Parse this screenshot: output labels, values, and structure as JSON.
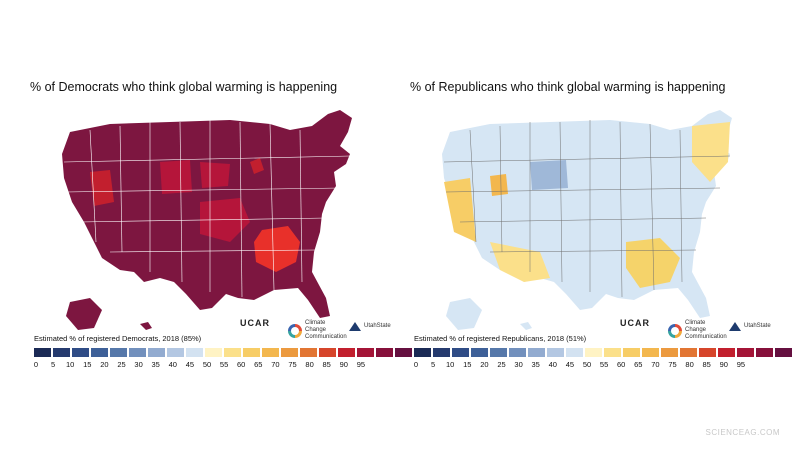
{
  "left_map": {
    "title": "% of Democrats who think global warming is happening",
    "legend_caption": "Estimated % of registered Democrats, 2018 (85%)",
    "base_color": "#7d1640",
    "border_color": "#ffffff",
    "hotspot_color": "#e8302a"
  },
  "right_map": {
    "title": "% of Republicans who think global warming is happening",
    "legend_caption": "Estimated % of registered Republicans, 2018 (51%)",
    "base_color": "#d6e6f4",
    "border_color": "#6f6f6f",
    "hotspot_color": "#f5d36a"
  },
  "legend": {
    "ticks": [
      "0",
      "5",
      "10",
      "15",
      "20",
      "25",
      "30",
      "35",
      "40",
      "45",
      "50",
      "55",
      "60",
      "65",
      "70",
      "75",
      "80",
      "85",
      "90",
      "95"
    ],
    "colors": [
      "#1b2a55",
      "#253a6e",
      "#2f4c86",
      "#3e6098",
      "#5678aa",
      "#7290bd",
      "#92abd0",
      "#b3c7e2",
      "#d3e2f1",
      "#fff3c4",
      "#fbe08a",
      "#f7cd66",
      "#f3b74e",
      "#ec9a3f",
      "#e27533",
      "#d6452b",
      "#c21f2e",
      "#a41437",
      "#86103b",
      "#651040"
    ]
  },
  "logos": {
    "ucar": "UCAR",
    "ucar_sub": "",
    "ccc_line1": "Climate Change",
    "ccc_line2": "Communication",
    "usu": "UtahState"
  },
  "watermark": "SCIENCEAG.COM"
}
